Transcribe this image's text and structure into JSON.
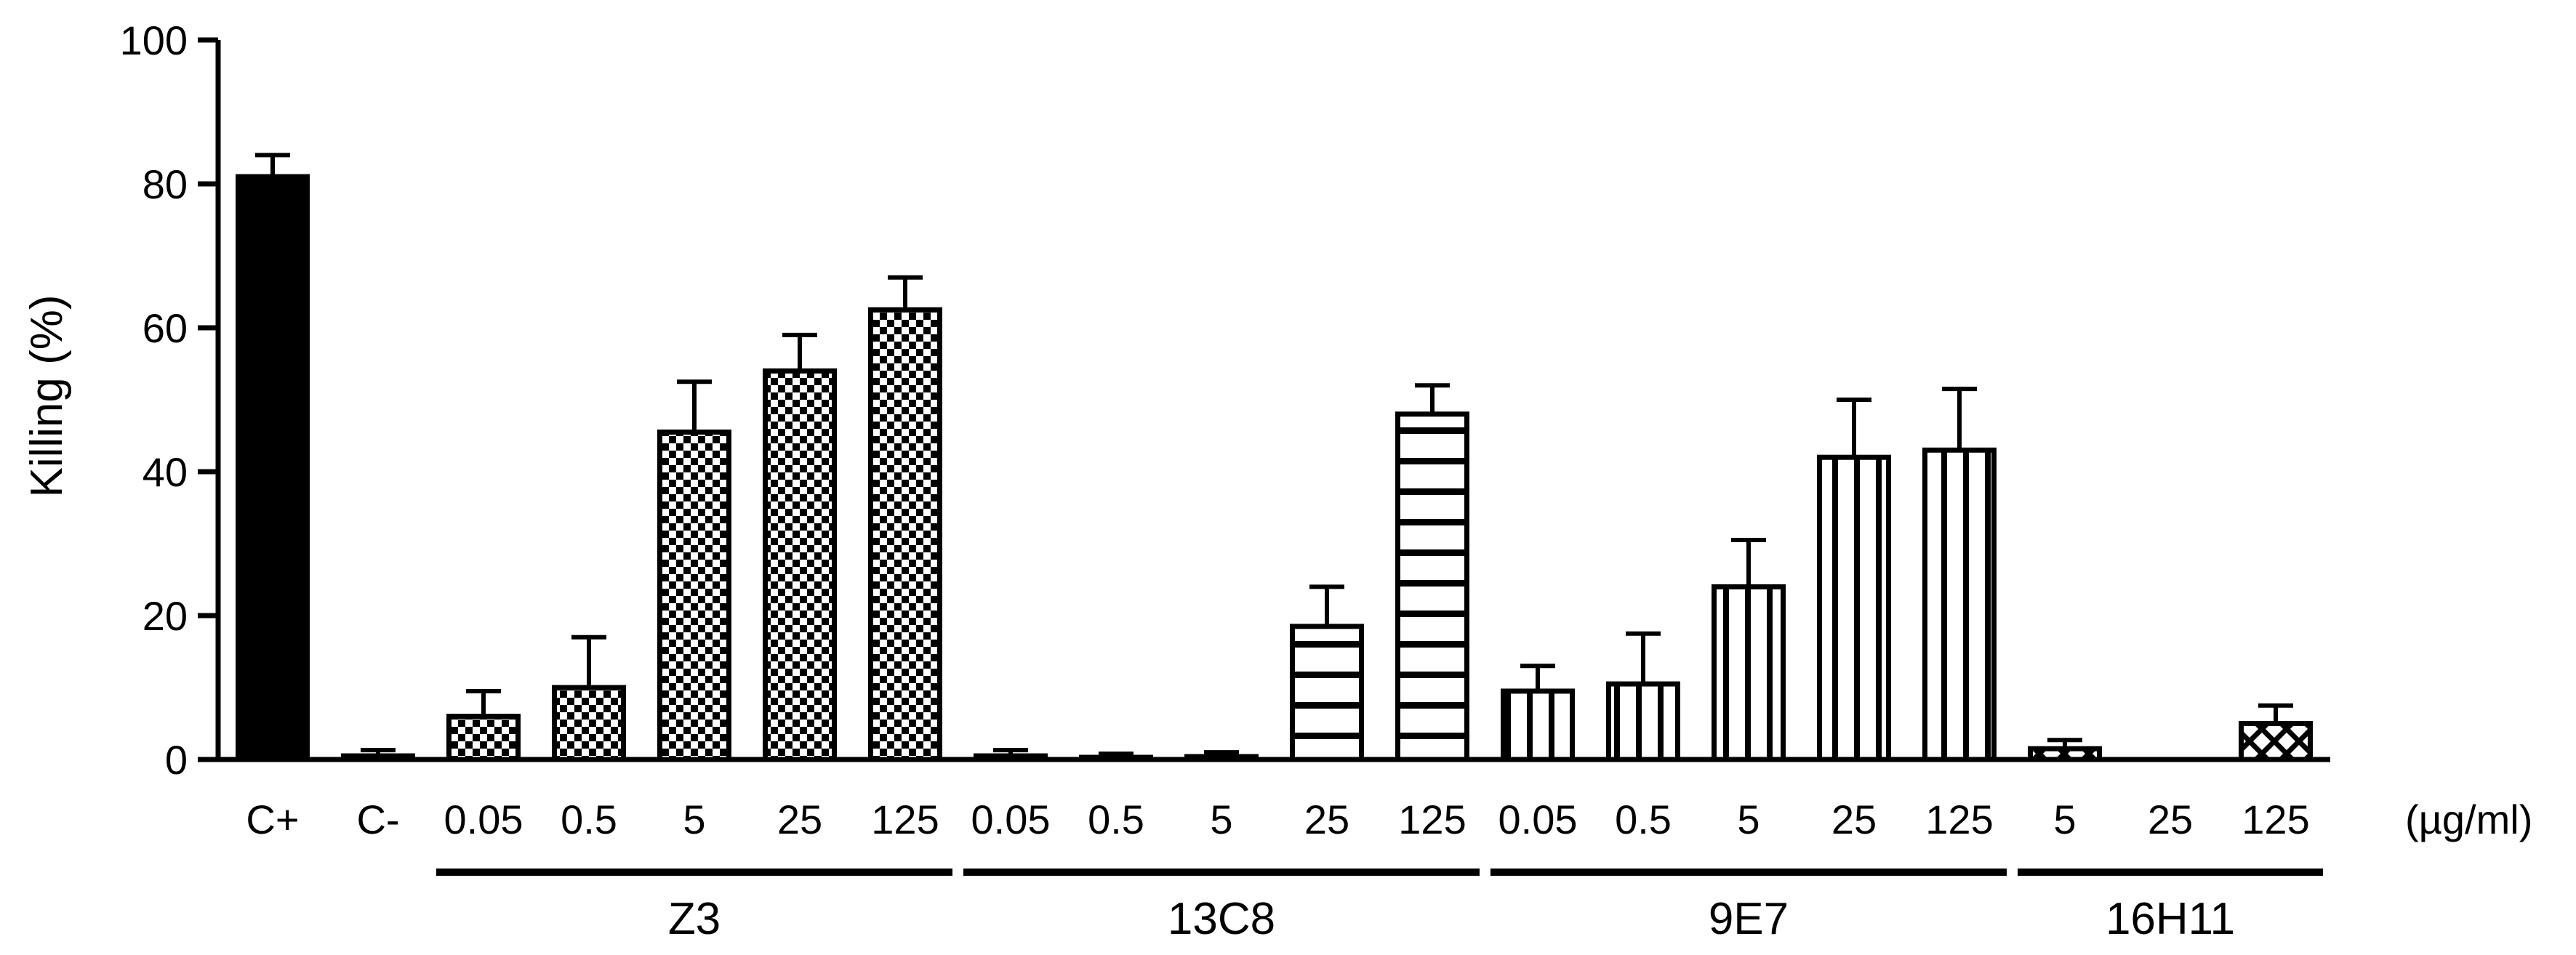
{
  "chart_data": {
    "type": "bar",
    "ylabel": "Killing (%)",
    "ylim": [
      0,
      100
    ],
    "yticks": [
      "0",
      "20",
      "40",
      "60",
      "80",
      "100"
    ],
    "unit_label": "(µg/ml)",
    "categories": [
      "C+",
      "C-",
      "0.05",
      "0.5",
      "5",
      "25",
      "125",
      "0.05",
      "0.5",
      "5",
      "25",
      "125",
      "0.05",
      "0.5",
      "5",
      "25",
      "125",
      "5",
      "25",
      "125"
    ],
    "groups": [
      {
        "name": "Z3",
        "from": 2,
        "to": 6
      },
      {
        "name": "13C8",
        "from": 7,
        "to": 11
      },
      {
        "name": "9E7",
        "from": 12,
        "to": 16
      },
      {
        "name": "16H11",
        "from": 17,
        "to": 19
      }
    ],
    "bars": [
      {
        "label": "C+",
        "value": 81,
        "error": 3,
        "pattern": "solid"
      },
      {
        "label": "C-",
        "value": 0.5,
        "error": 0.8,
        "pattern": "none"
      },
      {
        "label": "0.05",
        "value": 6,
        "error": 3.5,
        "pattern": "checker"
      },
      {
        "label": "0.5",
        "value": 10,
        "error": 7,
        "pattern": "checker"
      },
      {
        "label": "5",
        "value": 45.5,
        "error": 7,
        "pattern": "checker"
      },
      {
        "label": "25",
        "value": 54,
        "error": 5,
        "pattern": "checker"
      },
      {
        "label": "125",
        "value": 62.5,
        "error": 4.5,
        "pattern": "checker"
      },
      {
        "label": "0.05",
        "value": 0.5,
        "error": 0.8,
        "pattern": "hlines"
      },
      {
        "label": "0.5",
        "value": 0.3,
        "error": 0.5,
        "pattern": "hlines"
      },
      {
        "label": "5",
        "value": 0.4,
        "error": 0.6,
        "pattern": "hlines"
      },
      {
        "label": "25",
        "value": 18.5,
        "error": 5.5,
        "pattern": "hlines"
      },
      {
        "label": "125",
        "value": 48,
        "error": 4,
        "pattern": "hlines"
      },
      {
        "label": "0.05",
        "value": 9.5,
        "error": 3.5,
        "pattern": "vlines"
      },
      {
        "label": "0.5",
        "value": 10.5,
        "error": 7,
        "pattern": "vlines"
      },
      {
        "label": "5",
        "value": 24,
        "error": 6.5,
        "pattern": "vlines"
      },
      {
        "label": "25",
        "value": 42,
        "error": 8,
        "pattern": "vlines"
      },
      {
        "label": "125",
        "value": 43,
        "error": 8.5,
        "pattern": "vlines"
      },
      {
        "label": "5",
        "value": 1.5,
        "error": 1.2,
        "pattern": "diagcross"
      },
      {
        "label": "25",
        "value": 0,
        "error": 0,
        "pattern": "none"
      },
      {
        "label": "125",
        "value": 5,
        "error": 2.5,
        "pattern": "diagcross"
      }
    ]
  }
}
